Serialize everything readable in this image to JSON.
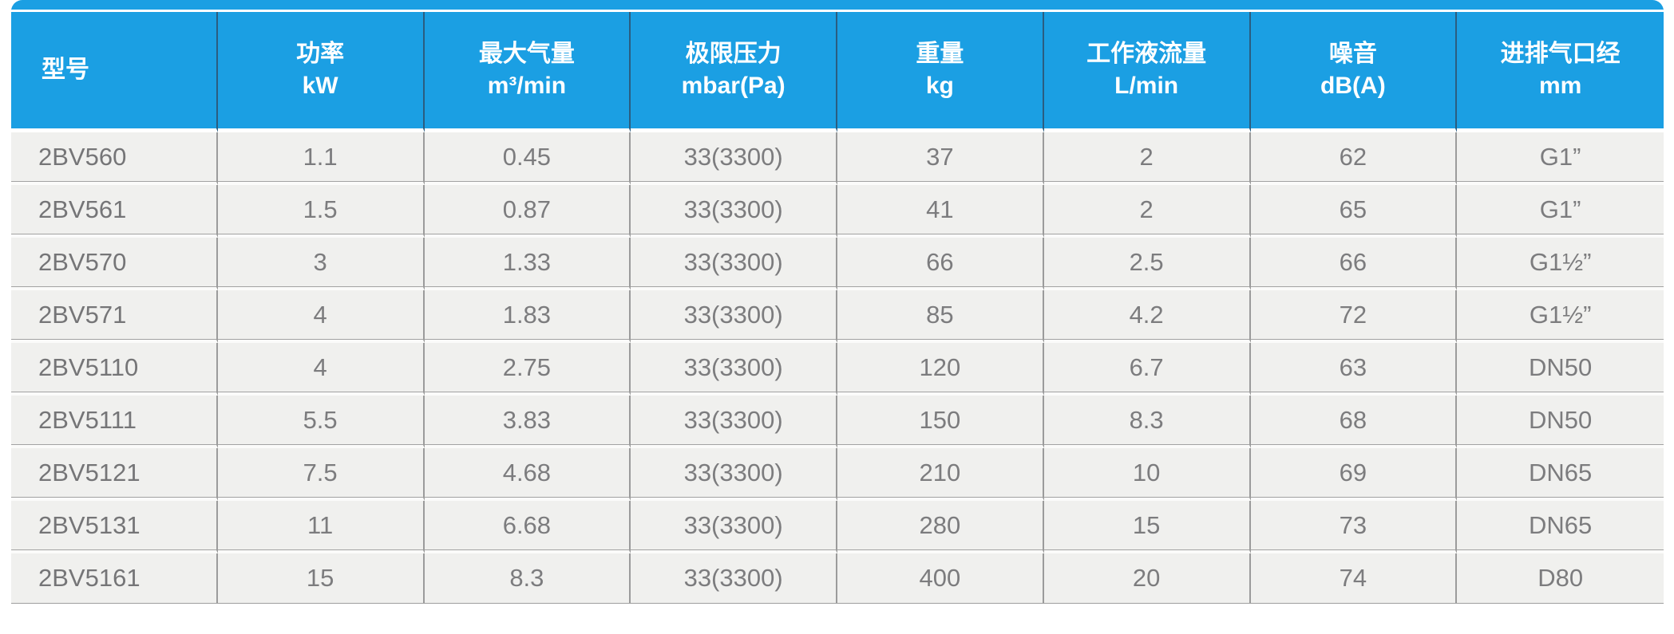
{
  "table": {
    "columns": [
      {
        "name": "型号",
        "unit": ""
      },
      {
        "name": "功率",
        "unit": "kW"
      },
      {
        "name": "最大气量",
        "unit": "m³/min"
      },
      {
        "name": "极限压力",
        "unit": "mbar(Pa)"
      },
      {
        "name": "重量",
        "unit": "kg"
      },
      {
        "name": "工作液流量",
        "unit": "L/min"
      },
      {
        "name": "噪音",
        "unit": "dB(A)"
      },
      {
        "name": "进排气口经",
        "unit": "mm"
      }
    ],
    "rows": [
      [
        "2BV560",
        "1.1",
        "0.45",
        "33(3300)",
        "37",
        "2",
        "62",
        "G1”"
      ],
      [
        "2BV561",
        "1.5",
        "0.87",
        "33(3300)",
        "41",
        "2",
        "65",
        "G1”"
      ],
      [
        "2BV570",
        "3",
        "1.33",
        "33(3300)",
        "66",
        "2.5",
        "66",
        "G1½”"
      ],
      [
        "2BV571",
        "4",
        "1.83",
        "33(3300)",
        "85",
        "4.2",
        "72",
        "G1½”"
      ],
      [
        "2BV5110",
        "4",
        "2.75",
        "33(3300)",
        "120",
        "6.7",
        "63",
        "DN50"
      ],
      [
        "2BV5111",
        "5.5",
        "3.83",
        "33(3300)",
        "150",
        "8.3",
        "68",
        "DN50"
      ],
      [
        "2BV5121",
        "7.5",
        "4.68",
        "33(3300)",
        "210",
        "10",
        "69",
        "DN65"
      ],
      [
        "2BV5131",
        "11",
        "6.68",
        "33(3300)",
        "280",
        "15",
        "73",
        "DN65"
      ],
      [
        "2BV5161",
        "15",
        "8.3",
        "33(3300)",
        "400",
        "20",
        "74",
        "D80"
      ]
    ],
    "colors": {
      "header_bg": "#1b9fe3",
      "header_text": "#ffffff",
      "header_divider": "#2b5d80",
      "row_bg": "#f0f0ee",
      "row_divider": "#9b9b9b",
      "row_gap": "#fbfbfa",
      "cell_text": "#7c7c7e",
      "page_bg": "#ffffff"
    }
  }
}
